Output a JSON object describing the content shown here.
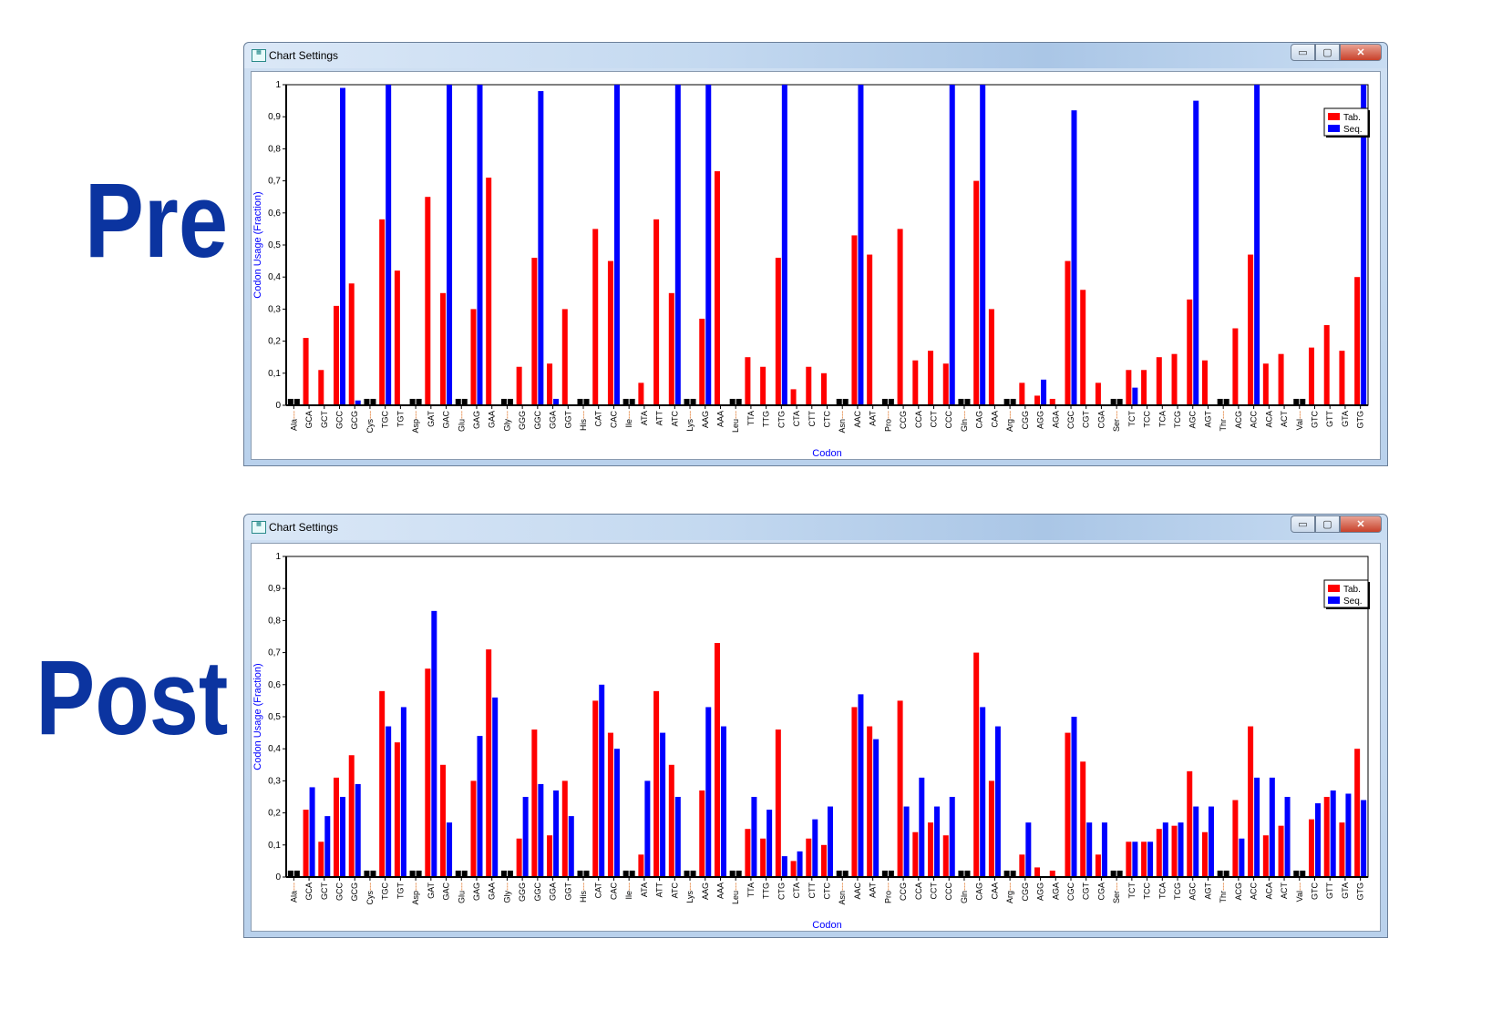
{
  "labels": {
    "pre": "Pre",
    "post": "Post"
  },
  "window": {
    "title": "Chart Settings",
    "icon": "app-icon",
    "buttons": [
      "minimize",
      "maximize",
      "close"
    ]
  },
  "colors": {
    "tab": "#ff0000",
    "seq": "#0000ff",
    "separator": "#000000",
    "axis_label": "#0000ff"
  },
  "chart_data": [
    {
      "type": "bar",
      "title": "Pre",
      "xlabel": "Codon",
      "ylabel": "Codon Usage (Fraction)",
      "ylim": [
        0,
        1
      ],
      "yticks": [
        "0",
        "0,1",
        "0,2",
        "0,3",
        "0,4",
        "0,5",
        "0,6",
        "0,7",
        "0,8",
        "0,9",
        "1"
      ],
      "legend": {
        "position": "top-right",
        "entries": [
          "Tab.",
          "Seq."
        ]
      },
      "categories": [
        "Ala---",
        "GCA",
        "GCT",
        "GCC",
        "GCG",
        "Cys---",
        "TGC",
        "TGT",
        "Asp---",
        "GAT",
        "GAC",
        "Glu---",
        "GAG",
        "GAA",
        "Gly---",
        "GGG",
        "GGC",
        "GGA",
        "GGT",
        "His---",
        "CAT",
        "CAC",
        "Ile---",
        "ATA",
        "ATT",
        "ATC",
        "Lys---",
        "AAG",
        "AAA",
        "Leu---",
        "TTA",
        "TTG",
        "CTG",
        "CTA",
        "CTT",
        "CTC",
        "Asn---",
        "AAC",
        "AAT",
        "Pro---",
        "CCG",
        "CCA",
        "CCT",
        "CCC",
        "Gln---",
        "CAG",
        "CAA",
        "Arg---",
        "CGG",
        "AGG",
        "AGA",
        "CGC",
        "CGT",
        "CGA",
        "Ser---",
        "TCT",
        "TCC",
        "TCA",
        "TCG",
        "AGC",
        "AGT",
        "Thr---",
        "ACG",
        "ACC",
        "ACA",
        "ACT",
        "Val---",
        "GTC",
        "GTT",
        "GTA",
        "GTG"
      ],
      "series": [
        {
          "name": "Tab.",
          "values": [
            0.02,
            0.21,
            0.11,
            0.31,
            0.38,
            0.02,
            0.58,
            0.42,
            0.02,
            0.65,
            0.35,
            0.02,
            0.3,
            0.71,
            0.02,
            0.12,
            0.46,
            0.13,
            0.3,
            0.02,
            0.55,
            0.45,
            0.02,
            0.07,
            0.58,
            0.35,
            0.02,
            0.27,
            0.73,
            0.02,
            0.15,
            0.12,
            0.46,
            0.05,
            0.12,
            0.1,
            0.02,
            0.53,
            0.47,
            0.02,
            0.55,
            0.14,
            0.17,
            0.13,
            0.02,
            0.7,
            0.3,
            0.02,
            0.07,
            0.03,
            0.02,
            0.45,
            0.36,
            0.07,
            0.02,
            0.11,
            0.11,
            0.15,
            0.16,
            0.33,
            0.14,
            0.02,
            0.24,
            0.47,
            0.13,
            0.16,
            0.02,
            0.18,
            0.25,
            0.17,
            0.4
          ]
        },
        {
          "name": "Seq.",
          "values": [
            0.02,
            0,
            0,
            0.99,
            0.015,
            0.02,
            1,
            0,
            0.02,
            0,
            1,
            0.02,
            1,
            0,
            0.02,
            0,
            0.98,
            0.02,
            0,
            0.02,
            0,
            1,
            0.02,
            0,
            0,
            1,
            0.02,
            1,
            0,
            0.02,
            0,
            0,
            1,
            0,
            0,
            0,
            0.02,
            1,
            0,
            0.02,
            0,
            0,
            0,
            1,
            0.02,
            1,
            0,
            0.02,
            0,
            0.08,
            0,
            0.92,
            0,
            0,
            0.02,
            0.055,
            0,
            0,
            0,
            0.95,
            0,
            0.02,
            0,
            1,
            0,
            0,
            0.02,
            0,
            0,
            0,
            1
          ]
        }
      ]
    },
    {
      "type": "bar",
      "title": "Post",
      "xlabel": "Codon",
      "ylabel": "Codon Usage (Fraction)",
      "ylim": [
        0,
        1
      ],
      "yticks": [
        "0",
        "0,1",
        "0,2",
        "0,3",
        "0,4",
        "0,5",
        "0,6",
        "0,7",
        "0,8",
        "0,9",
        "1"
      ],
      "legend": {
        "position": "top-right",
        "entries": [
          "Tab.",
          "Seq."
        ]
      },
      "categories": [
        "Ala---",
        "GCA",
        "GCT",
        "GCC",
        "GCG",
        "Cys---",
        "TGC",
        "TGT",
        "Asp---",
        "GAT",
        "GAC",
        "Glu---",
        "GAG",
        "GAA",
        "Gly---",
        "GGG",
        "GGC",
        "GGA",
        "GGT",
        "His---",
        "CAT",
        "CAC",
        "Ile---",
        "ATA",
        "ATT",
        "ATC",
        "Lys---",
        "AAG",
        "AAA",
        "Leu---",
        "TTA",
        "TTG",
        "CTG",
        "CTA",
        "CTT",
        "CTC",
        "Asn---",
        "AAC",
        "AAT",
        "Pro---",
        "CCG",
        "CCA",
        "CCT",
        "CCC",
        "Gln---",
        "CAG",
        "CAA",
        "Arg---",
        "CGG",
        "AGG",
        "AGA",
        "CGC",
        "CGT",
        "CGA",
        "Ser---",
        "TCT",
        "TCC",
        "TCA",
        "TCG",
        "AGC",
        "AGT",
        "Thr---",
        "ACG",
        "ACC",
        "ACA",
        "ACT",
        "Val---",
        "GTC",
        "GTT",
        "GTA",
        "GTG"
      ],
      "series": [
        {
          "name": "Tab.",
          "values": [
            0.02,
            0.21,
            0.11,
            0.31,
            0.38,
            0.02,
            0.58,
            0.42,
            0.02,
            0.65,
            0.35,
            0.02,
            0.3,
            0.71,
            0.02,
            0.12,
            0.46,
            0.13,
            0.3,
            0.02,
            0.55,
            0.45,
            0.02,
            0.07,
            0.58,
            0.35,
            0.02,
            0.27,
            0.73,
            0.02,
            0.15,
            0.12,
            0.46,
            0.05,
            0.12,
            0.1,
            0.02,
            0.53,
            0.47,
            0.02,
            0.55,
            0.14,
            0.17,
            0.13,
            0.02,
            0.7,
            0.3,
            0.02,
            0.07,
            0.03,
            0.02,
            0.45,
            0.36,
            0.07,
            0.02,
            0.11,
            0.11,
            0.15,
            0.16,
            0.33,
            0.14,
            0.02,
            0.24,
            0.47,
            0.13,
            0.16,
            0.02,
            0.18,
            0.25,
            0.17,
            0.4
          ]
        },
        {
          "name": "Seq.",
          "values": [
            0.02,
            0.28,
            0.19,
            0.25,
            0.29,
            0.02,
            0.47,
            0.53,
            0.02,
            0.83,
            0.17,
            0.02,
            0.44,
            0.56,
            0.02,
            0.25,
            0.29,
            0.27,
            0.19,
            0.02,
            0.6,
            0.4,
            0.02,
            0.3,
            0.45,
            0.25,
            0.02,
            0.53,
            0.47,
            0.02,
            0.25,
            0.21,
            0.065,
            0.08,
            0.18,
            0.22,
            0.02,
            0.57,
            0.43,
            0.02,
            0.22,
            0.31,
            0.22,
            0.25,
            0.02,
            0.53,
            0.47,
            0.02,
            0.17,
            0,
            0,
            0.5,
            0.17,
            0.17,
            0.02,
            0.11,
            0.11,
            0.17,
            0.17,
            0.22,
            0.22,
            0.02,
            0.12,
            0.31,
            0.31,
            0.25,
            0.02,
            0.23,
            0.27,
            0.26,
            0.24
          ]
        }
      ]
    }
  ]
}
